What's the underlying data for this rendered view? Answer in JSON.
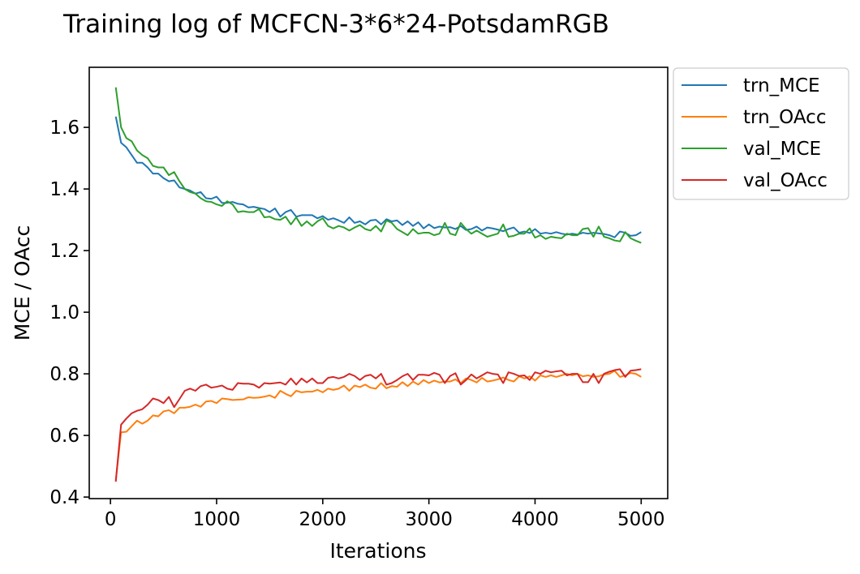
{
  "chart_data": {
    "type": "line",
    "title": "Training log of MCFCN-3*6*24-PotsdamRGB",
    "xlabel": "Iterations",
    "ylabel": "MCE / OAcc",
    "xlim": [
      -200,
      5250
    ],
    "ylim": [
      0.395,
      1.795
    ],
    "xticks": [
      0,
      1000,
      2000,
      3000,
      4000,
      5000
    ],
    "xtick_labels": [
      "0",
      "1000",
      "2000",
      "3000",
      "4000",
      "5000"
    ],
    "yticks": [
      0.4,
      0.6,
      0.8,
      1.0,
      1.2,
      1.4,
      1.6
    ],
    "ytick_labels": [
      "0.4",
      "0.6",
      "0.8",
      "1.0",
      "1.2",
      "1.4",
      "1.6"
    ],
    "grid": false,
    "legend_position": "outside-top-right",
    "x": [
      50,
      100,
      150,
      200,
      250,
      300,
      350,
      400,
      450,
      500,
      550,
      600,
      650,
      700,
      750,
      800,
      850,
      900,
      950,
      1000,
      1050,
      1100,
      1150,
      1200,
      1250,
      1300,
      1350,
      1400,
      1450,
      1500,
      1550,
      1600,
      1650,
      1700,
      1750,
      1800,
      1850,
      1900,
      1950,
      2000,
      2050,
      2100,
      2150,
      2200,
      2250,
      2300,
      2350,
      2400,
      2450,
      2500,
      2550,
      2600,
      2650,
      2700,
      2750,
      2800,
      2850,
      2900,
      2950,
      3000,
      3050,
      3100,
      3150,
      3200,
      3250,
      3300,
      3350,
      3400,
      3450,
      3500,
      3550,
      3600,
      3650,
      3700,
      3750,
      3800,
      3850,
      3900,
      3950,
      4000,
      4050,
      4100,
      4150,
      4200,
      4250,
      4300,
      4350,
      4400,
      4450,
      4500,
      4550,
      4600,
      4650,
      4700,
      4750,
      4800,
      4850,
      4900,
      4950,
      5000
    ],
    "series": [
      {
        "name": "trn_MCE",
        "color": "#1f77b4",
        "values": [
          1.635,
          1.55,
          1.535,
          1.51,
          1.485,
          1.485,
          1.47,
          1.45,
          1.45,
          1.435,
          1.425,
          1.428,
          1.405,
          1.4,
          1.395,
          1.385,
          1.39,
          1.37,
          1.368,
          1.375,
          1.355,
          1.355,
          1.358,
          1.352,
          1.35,
          1.34,
          1.342,
          1.338,
          1.335,
          1.325,
          1.337,
          1.31,
          1.325,
          1.332,
          1.31,
          1.315,
          1.315,
          1.315,
          1.305,
          1.312,
          1.3,
          1.305,
          1.298,
          1.29,
          1.308,
          1.29,
          1.295,
          1.285,
          1.298,
          1.3,
          1.285,
          1.302,
          1.295,
          1.298,
          1.283,
          1.295,
          1.28,
          1.292,
          1.272,
          1.285,
          1.273,
          1.278,
          1.275,
          1.276,
          1.27,
          1.28,
          1.267,
          1.27,
          1.278,
          1.265,
          1.275,
          1.272,
          1.268,
          1.263,
          1.27,
          1.275,
          1.258,
          1.262,
          1.257,
          1.27,
          1.255,
          1.258,
          1.255,
          1.26,
          1.255,
          1.252,
          1.255,
          1.252,
          1.258,
          1.255,
          1.258,
          1.256,
          1.254,
          1.25,
          1.243,
          1.262,
          1.258,
          1.248,
          1.25,
          1.26
        ]
      },
      {
        "name": "trn_OAcc",
        "color": "#ff7f0e",
        "values": [
          0.455,
          0.61,
          0.612,
          0.63,
          0.648,
          0.638,
          0.648,
          0.665,
          0.662,
          0.678,
          0.682,
          0.672,
          0.69,
          0.69,
          0.693,
          0.7,
          0.693,
          0.71,
          0.712,
          0.705,
          0.72,
          0.718,
          0.715,
          0.716,
          0.717,
          0.724,
          0.722,
          0.723,
          0.726,
          0.73,
          0.722,
          0.745,
          0.735,
          0.727,
          0.745,
          0.74,
          0.742,
          0.742,
          0.748,
          0.74,
          0.752,
          0.748,
          0.752,
          0.762,
          0.745,
          0.762,
          0.757,
          0.765,
          0.755,
          0.752,
          0.77,
          0.753,
          0.76,
          0.758,
          0.773,
          0.76,
          0.775,
          0.765,
          0.78,
          0.77,
          0.778,
          0.772,
          0.775,
          0.775,
          0.782,
          0.77,
          0.785,
          0.78,
          0.772,
          0.787,
          0.775,
          0.778,
          0.782,
          0.788,
          0.78,
          0.775,
          0.792,
          0.785,
          0.792,
          0.778,
          0.795,
          0.79,
          0.795,
          0.79,
          0.795,
          0.8,
          0.795,
          0.8,
          0.792,
          0.795,
          0.79,
          0.792,
          0.798,
          0.8,
          0.81,
          0.79,
          0.795,
          0.803,
          0.8,
          0.79
        ]
      },
      {
        "name": "val_MCE",
        "color": "#2ca02c",
        "values": [
          1.73,
          1.6,
          1.565,
          1.555,
          1.525,
          1.51,
          1.5,
          1.475,
          1.47,
          1.47,
          1.445,
          1.455,
          1.425,
          1.4,
          1.39,
          1.385,
          1.37,
          1.36,
          1.358,
          1.35,
          1.345,
          1.36,
          1.35,
          1.325,
          1.328,
          1.325,
          1.325,
          1.335,
          1.308,
          1.31,
          1.302,
          1.3,
          1.31,
          1.285,
          1.308,
          1.28,
          1.295,
          1.28,
          1.295,
          1.305,
          1.28,
          1.272,
          1.28,
          1.275,
          1.265,
          1.275,
          1.283,
          1.27,
          1.265,
          1.28,
          1.262,
          1.298,
          1.29,
          1.27,
          1.26,
          1.25,
          1.27,
          1.255,
          1.258,
          1.258,
          1.25,
          1.255,
          1.29,
          1.255,
          1.25,
          1.29,
          1.27,
          1.255,
          1.265,
          1.255,
          1.245,
          1.25,
          1.255,
          1.285,
          1.245,
          1.248,
          1.255,
          1.255,
          1.272,
          1.242,
          1.25,
          1.238,
          1.245,
          1.242,
          1.24,
          1.255,
          1.25,
          1.25,
          1.27,
          1.273,
          1.245,
          1.278,
          1.245,
          1.24,
          1.233,
          1.23,
          1.26,
          1.24,
          1.232,
          1.225
        ]
      },
      {
        "name": "val_OAcc",
        "color": "#d62728",
        "values": [
          0.45,
          0.635,
          0.655,
          0.672,
          0.68,
          0.685,
          0.7,
          0.72,
          0.715,
          0.705,
          0.725,
          0.692,
          0.718,
          0.745,
          0.752,
          0.745,
          0.76,
          0.765,
          0.755,
          0.758,
          0.762,
          0.752,
          0.748,
          0.77,
          0.768,
          0.768,
          0.765,
          0.755,
          0.77,
          0.768,
          0.77,
          0.772,
          0.765,
          0.785,
          0.765,
          0.785,
          0.772,
          0.785,
          0.77,
          0.77,
          0.787,
          0.79,
          0.785,
          0.79,
          0.8,
          0.793,
          0.78,
          0.793,
          0.797,
          0.785,
          0.8,
          0.765,
          0.77,
          0.78,
          0.792,
          0.8,
          0.78,
          0.797,
          0.797,
          0.795,
          0.803,
          0.797,
          0.77,
          0.793,
          0.802,
          0.765,
          0.78,
          0.798,
          0.785,
          0.795,
          0.805,
          0.8,
          0.798,
          0.77,
          0.805,
          0.8,
          0.793,
          0.795,
          0.78,
          0.805,
          0.8,
          0.81,
          0.805,
          0.808,
          0.81,
          0.795,
          0.8,
          0.8,
          0.773,
          0.773,
          0.8,
          0.77,
          0.8,
          0.807,
          0.812,
          0.815,
          0.79,
          0.81,
          0.812,
          0.815
        ]
      }
    ]
  }
}
